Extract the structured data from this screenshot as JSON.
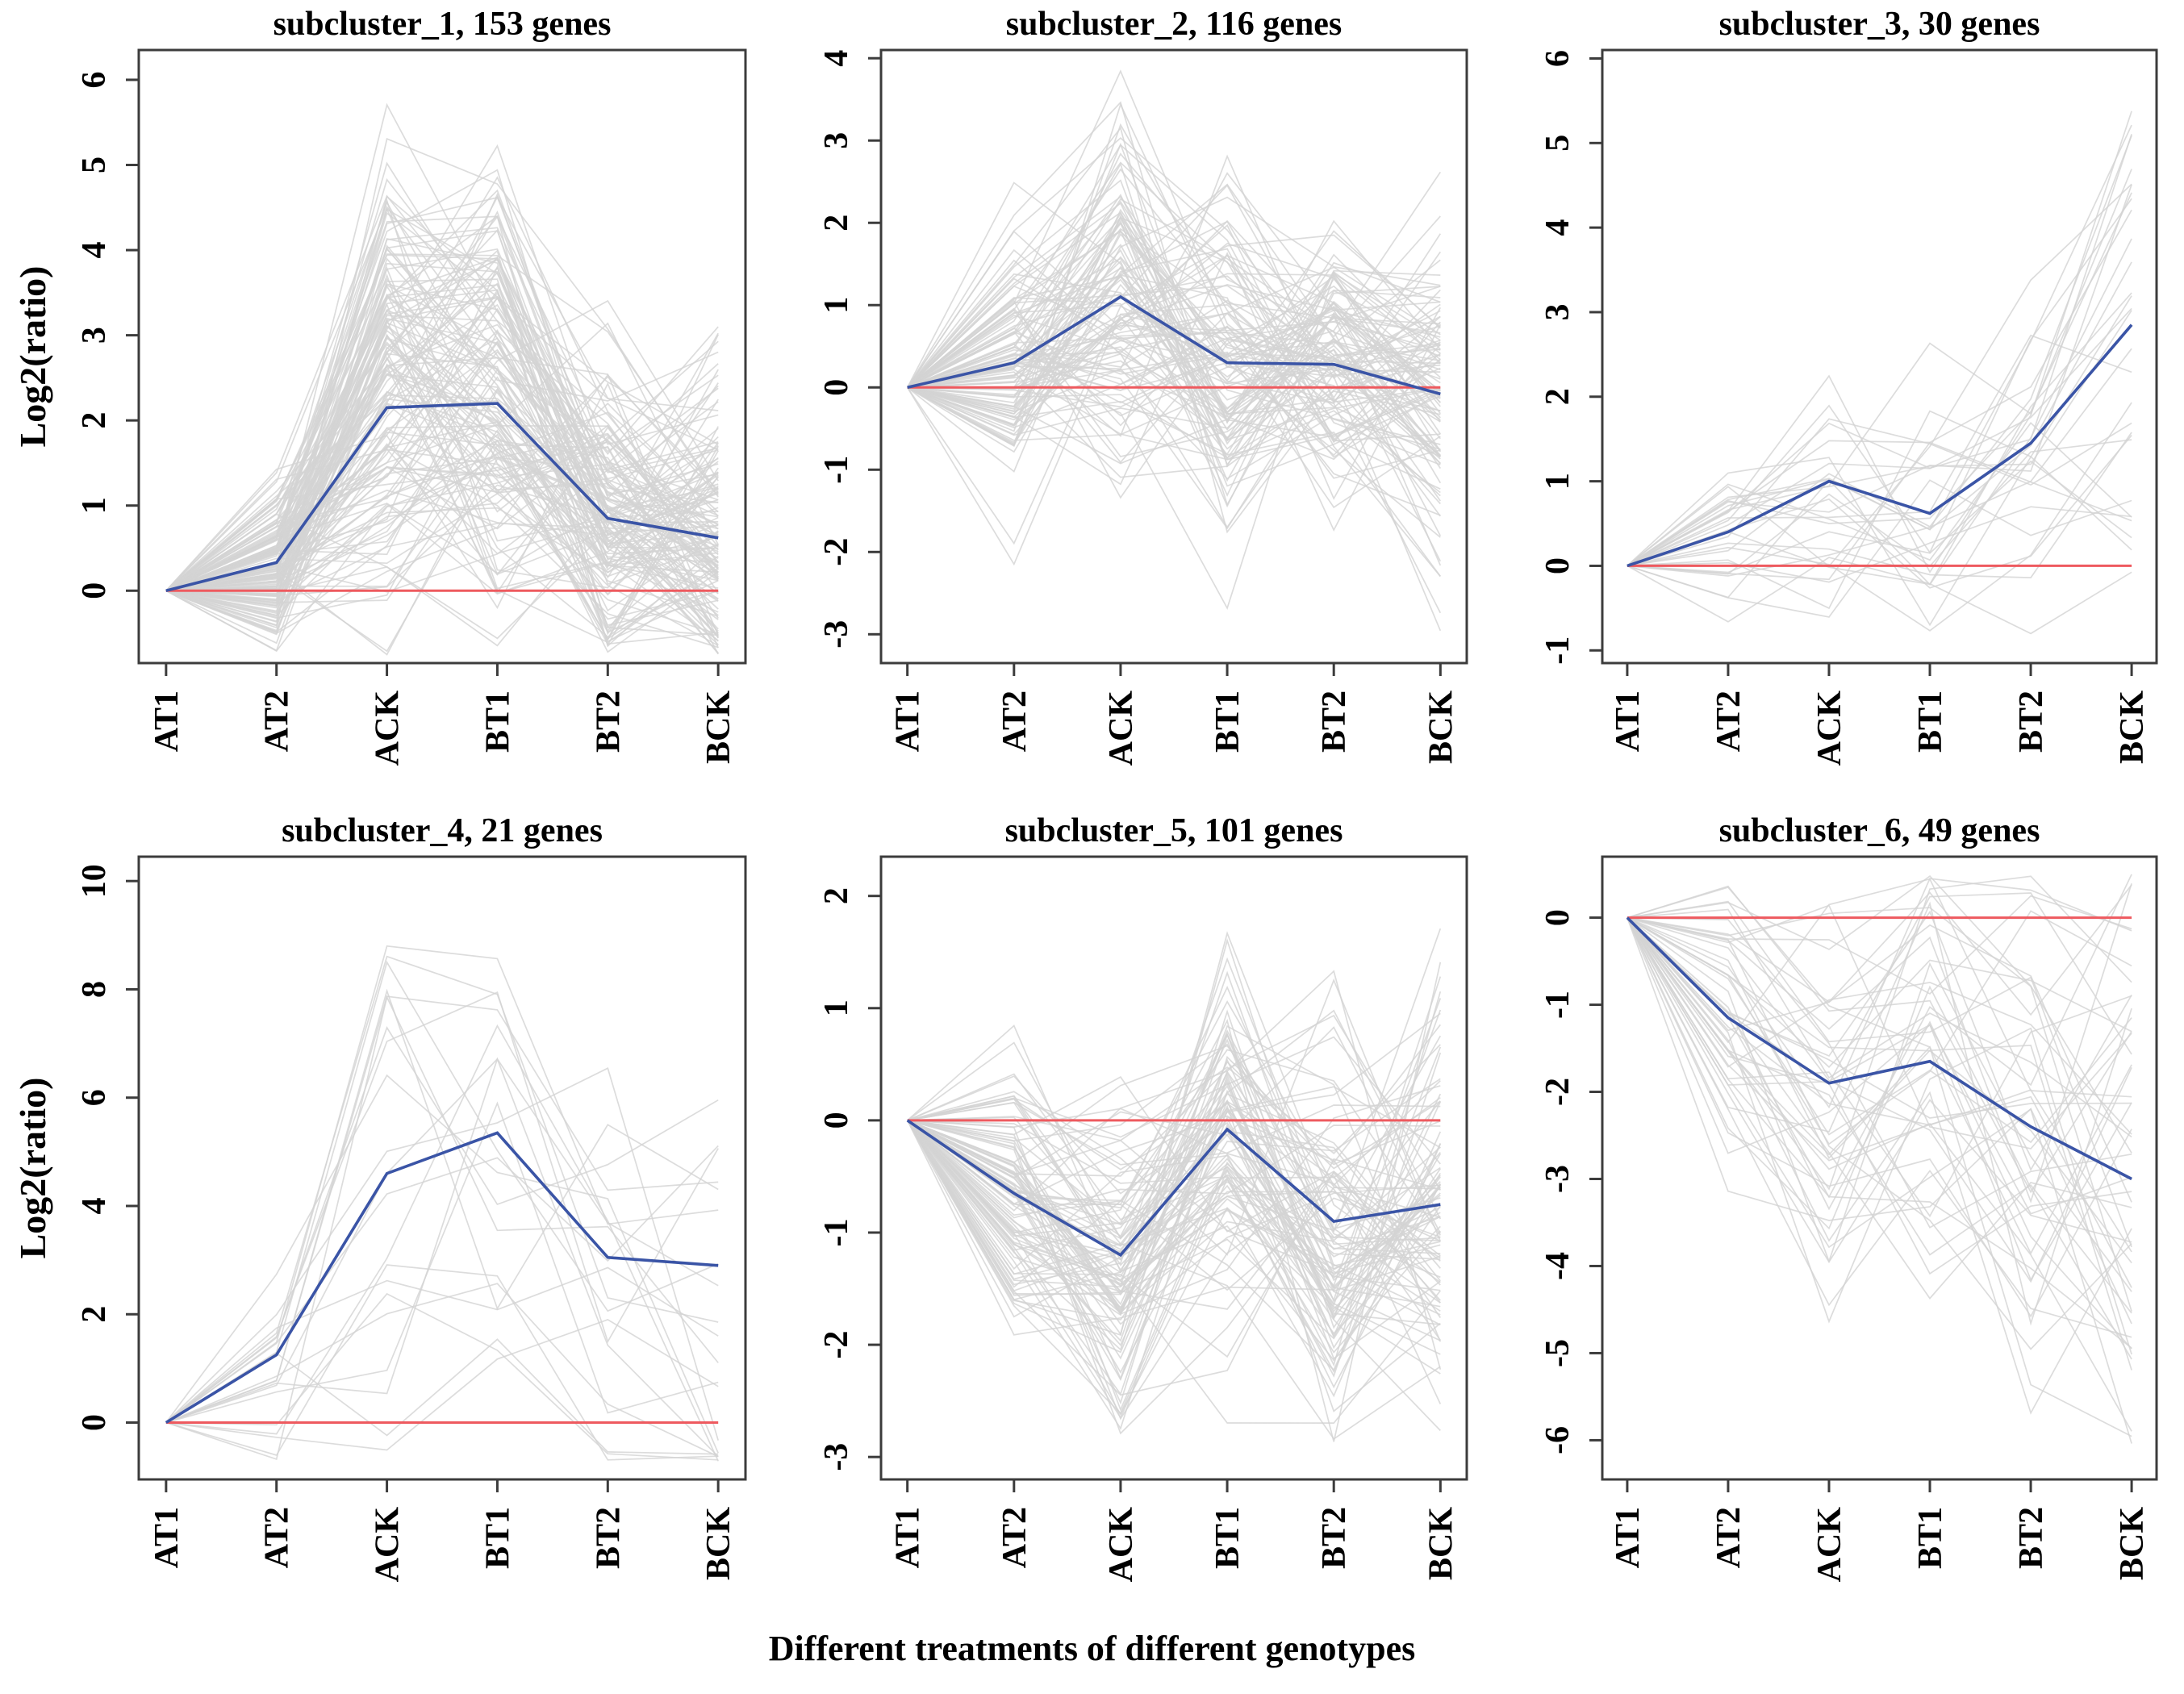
{
  "figure": {
    "xlabel": "Different treatments of different genotypes",
    "ylabel": "Log2(ratio)",
    "colors": {
      "mean_line": "#3a54a6",
      "baseline": "#ee5a5f",
      "trace": "#d3d3d3",
      "axis": "#3c3c3c",
      "text": "#000000",
      "background": "#ffffff"
    }
  },
  "chart_data": [
    {
      "type": "line",
      "title": "subcluster_1, 153 genes",
      "gene_count": 153,
      "categories": [
        "AT1",
        "AT2",
        "ACK",
        "BT1",
        "BT2",
        "BCK"
      ],
      "series": [
        {
          "name": "cluster mean",
          "values": [
            0,
            0.33,
            2.15,
            2.2,
            0.85,
            0.62
          ]
        },
        {
          "name": "baseline",
          "values": [
            0,
            0,
            0,
            0,
            0,
            0
          ]
        }
      ],
      "ylabel": "Log2(ratio)",
      "show_ylabel": true,
      "ylim": [
        -0.85,
        6.35
      ],
      "yticks": [
        0,
        1,
        2,
        3,
        4,
        5,
        6
      ],
      "grid": false,
      "legend": "none",
      "background_traces": {
        "count": 153,
        "spread": [
          0,
          0.45,
          1.05,
          0.95,
          0.9,
          0.9
        ],
        "scale_range": [
          0.35,
          1.85
        ],
        "clip": [
          -0.75,
          6.1
        ],
        "seed": 1153
      }
    },
    {
      "type": "line",
      "title": "subcluster_2, 116 genes",
      "gene_count": 116,
      "categories": [
        "AT1",
        "AT2",
        "ACK",
        "BT1",
        "BT2",
        "BCK"
      ],
      "series": [
        {
          "name": "cluster mean",
          "values": [
            0,
            0.3,
            1.1,
            0.3,
            0.28,
            -0.08
          ]
        },
        {
          "name": "baseline",
          "values": [
            0,
            0,
            0,
            0,
            0,
            0
          ]
        }
      ],
      "show_ylabel": false,
      "ylim": [
        -3.35,
        4.1
      ],
      "yticks": [
        -3,
        -2,
        -1,
        0,
        1,
        2,
        3,
        4
      ],
      "grid": false,
      "legend": "none",
      "background_traces": {
        "count": 116,
        "spread": [
          0,
          0.75,
          1.0,
          1.05,
          0.95,
          0.95
        ],
        "scale_range": [
          0.3,
          1.8
        ],
        "clip": [
          -3.05,
          3.85
        ],
        "seed": 2116
      }
    },
    {
      "type": "line",
      "title": "subcluster_3, 30 genes",
      "gene_count": 30,
      "categories": [
        "AT1",
        "AT2",
        "ACK",
        "BT1",
        "BT2",
        "BCK"
      ],
      "series": [
        {
          "name": "cluster mean",
          "values": [
            0,
            0.4,
            1.0,
            0.62,
            1.45,
            2.85
          ]
        },
        {
          "name": "baseline",
          "values": [
            0,
            0,
            0,
            0,
            0,
            0
          ]
        }
      ],
      "show_ylabel": false,
      "ylim": [
        -1.15,
        6.1
      ],
      "yticks": [
        -1,
        0,
        1,
        2,
        3,
        4,
        5,
        6
      ],
      "grid": false,
      "legend": "none",
      "background_traces": {
        "count": 30,
        "spread": [
          0,
          0.55,
          0.7,
          0.7,
          0.95,
          1.1
        ],
        "scale_range": [
          0.3,
          1.7
        ],
        "clip": [
          -0.85,
          5.9
        ],
        "seed": 3030
      }
    },
    {
      "type": "line",
      "title": "subcluster_4, 21 genes",
      "gene_count": 21,
      "categories": [
        "AT1",
        "AT2",
        "ACK",
        "BT1",
        "BT2",
        "BCK"
      ],
      "series": [
        {
          "name": "cluster mean",
          "values": [
            0,
            1.25,
            4.6,
            5.35,
            3.05,
            2.9
          ]
        },
        {
          "name": "baseline",
          "values": [
            0,
            0,
            0,
            0,
            0,
            0
          ]
        }
      ],
      "ylabel": "Log2(ratio)",
      "show_ylabel": true,
      "ylim": [
        -1.05,
        10.45
      ],
      "yticks": [
        0,
        2,
        4,
        6,
        8,
        10
      ],
      "grid": false,
      "legend": "none",
      "background_traces": {
        "count": 21,
        "spread": [
          0,
          1.0,
          2.1,
          2.1,
          1.7,
          1.8
        ],
        "scale_range": [
          0.3,
          1.6
        ],
        "clip": [
          -0.8,
          9.85
        ],
        "seed": 4021
      }
    },
    {
      "type": "line",
      "title": "subcluster_5, 101 genes",
      "gene_count": 101,
      "categories": [
        "AT1",
        "AT2",
        "ACK",
        "BT1",
        "BT2",
        "BCK"
      ],
      "series": [
        {
          "name": "cluster mean",
          "values": [
            0,
            -0.65,
            -1.2,
            -0.08,
            -0.9,
            -0.75
          ]
        },
        {
          "name": "baseline",
          "values": [
            0,
            0,
            0,
            0,
            0,
            0
          ]
        }
      ],
      "show_ylabel": false,
      "ylim": [
        -3.2,
        2.35
      ],
      "yticks": [
        -3,
        -2,
        -1,
        0,
        1,
        2
      ],
      "grid": false,
      "legend": "none",
      "background_traces": {
        "count": 101,
        "spread": [
          0,
          0.55,
          0.55,
          0.85,
          0.85,
          0.85
        ],
        "scale_range": [
          0.3,
          1.8
        ],
        "clip": [
          -2.9,
          2.25
        ],
        "seed": 5101
      }
    },
    {
      "type": "line",
      "title": "subcluster_6, 49 genes",
      "gene_count": 49,
      "categories": [
        "AT1",
        "AT2",
        "ACK",
        "BT1",
        "BT2",
        "BCK"
      ],
      "series": [
        {
          "name": "cluster mean",
          "values": [
            0,
            -1.15,
            -1.9,
            -1.65,
            -2.4,
            -3.0
          ]
        },
        {
          "name": "baseline",
          "values": [
            0,
            0,
            0,
            0,
            0,
            0
          ]
        }
      ],
      "show_ylabel": false,
      "ylim": [
        -6.45,
        0.7
      ],
      "yticks": [
        -6,
        -5,
        -4,
        -3,
        -2,
        -1,
        0
      ],
      "grid": false,
      "legend": "none",
      "background_traces": {
        "count": 49,
        "spread": [
          0,
          0.8,
          0.85,
          1.0,
          1.1,
          1.3
        ],
        "scale_range": [
          0.3,
          1.7
        ],
        "clip": [
          -6.05,
          0.55
        ],
        "seed": 6049
      }
    }
  ]
}
